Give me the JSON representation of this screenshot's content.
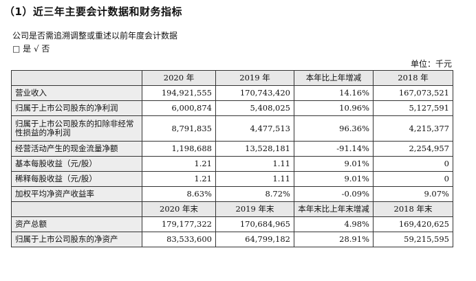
{
  "title": "（1）近三年主要会计数据和财务指标",
  "question": "公司是否需追溯调整或重述以前年度会计数据",
  "answer": "□ 是 √ 否",
  "unit": "单位：千元",
  "header1": [
    "",
    "2020 年",
    "2019 年",
    "本年比上年增减",
    "2018 年"
  ],
  "rows1": [
    [
      "营业收入",
      "194,921,555",
      "170,743,420",
      "14.16%",
      "167,073,521"
    ],
    [
      "归属于上市公司股东的净利润",
      "6,000,874",
      "5,408,025",
      "10.96%",
      "5,127,591"
    ],
    [
      "归属于上市公司股东的扣除非经常性损益的净利润",
      "8,791,835",
      "4,477,513",
      "96.36%",
      "4,215,377"
    ],
    [
      "经营活动产生的现金流量净额",
      "1,198,688",
      "13,528,181",
      "-91.14%",
      "2,254,957"
    ],
    [
      "基本每股收益（元/股）",
      "1.21",
      "1.11",
      "9.01%",
      "0"
    ],
    [
      "稀释每股收益（元/股）",
      "1.21",
      "1.11",
      "9.01%",
      "0"
    ],
    [
      "加权平均净资产收益率",
      "8.63%",
      "8.72%",
      "-0.09%",
      "9.07%"
    ]
  ],
  "header2": [
    "",
    "2020 年末",
    "2019 年末",
    "本年末比上年末增减",
    "2018 年末"
  ],
  "rows2": [
    [
      "资产总额",
      "179,177,322",
      "170,684,965",
      "4.98%",
      "169,420,625"
    ],
    [
      "归属于上市公司股东的净资产",
      "83,533,600",
      "64,799,182",
      "28.91%",
      "59,215,595"
    ]
  ]
}
